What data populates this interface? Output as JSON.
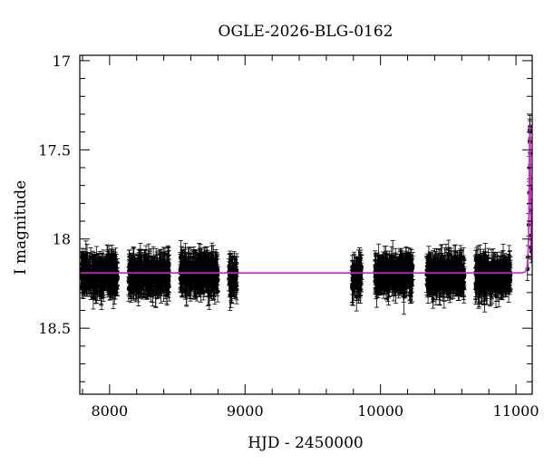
{
  "chart_data": {
    "type": "scatter",
    "title": "OGLE-2026-BLG-0162",
    "xlabel": "HJD - 2450000",
    "ylabel": "I magnitude",
    "xlim": [
      7780,
      11120
    ],
    "ylim": [
      18.87,
      16.97
    ],
    "y_inverted": true,
    "x_ticks": [
      8000,
      9000,
      10000,
      11000
    ],
    "x_tick_labels": [
      "8000",
      "9000",
      "10000",
      "11000"
    ],
    "y_ticks": [
      17,
      17.5,
      18,
      18.5
    ],
    "y_tick_labels": [
      "17",
      "17.5",
      "18",
      "18.5"
    ],
    "grid": false,
    "legend": "none",
    "series": [
      {
        "kind": "points-with-errorbars",
        "color": "#000000",
        "baseline_mag": 18.19,
        "typical_error": 0.07,
        "observing_seasons": [
          {
            "start": 7790,
            "end": 8060,
            "mean_mag": 18.2,
            "scatter": 0.055
          },
          {
            "start": 8140,
            "end": 8440,
            "mean_mag": 18.2,
            "scatter": 0.055
          },
          {
            "start": 8520,
            "end": 8800,
            "mean_mag": 18.2,
            "scatter": 0.06
          },
          {
            "start": 8880,
            "end": 8940,
            "mean_mag": 18.21,
            "scatter": 0.05
          },
          {
            "start": 9790,
            "end": 9860,
            "mean_mag": 18.21,
            "scatter": 0.055
          },
          {
            "start": 9960,
            "end": 10240,
            "mean_mag": 18.2,
            "scatter": 0.055
          },
          {
            "start": 10340,
            "end": 10620,
            "mean_mag": 18.2,
            "scatter": 0.055
          },
          {
            "start": 10700,
            "end": 10960,
            "mean_mag": 18.21,
            "scatter": 0.055
          }
        ],
        "event_points": [
          [
            11085,
            18.17
          ],
          [
            11089,
            18.1
          ],
          [
            11093,
            17.92
          ],
          [
            11097,
            17.74
          ],
          [
            11099,
            17.6
          ],
          [
            11101,
            17.45
          ],
          [
            11102,
            17.39
          ],
          [
            11103,
            17.37
          ],
          [
            11104,
            17.4
          ],
          [
            11105,
            17.52
          ],
          [
            11107,
            17.72
          ],
          [
            11108,
            17.84
          ],
          [
            11110,
            17.98
          ],
          [
            11112,
            18.05
          ],
          [
            11114,
            18.07
          ]
        ]
      },
      {
        "kind": "model-line",
        "color": "#cc22cc",
        "baseline_mag": 18.19,
        "peak_time": 11103,
        "peak_mag": 17.36,
        "timescale_days": 9
      }
    ]
  }
}
